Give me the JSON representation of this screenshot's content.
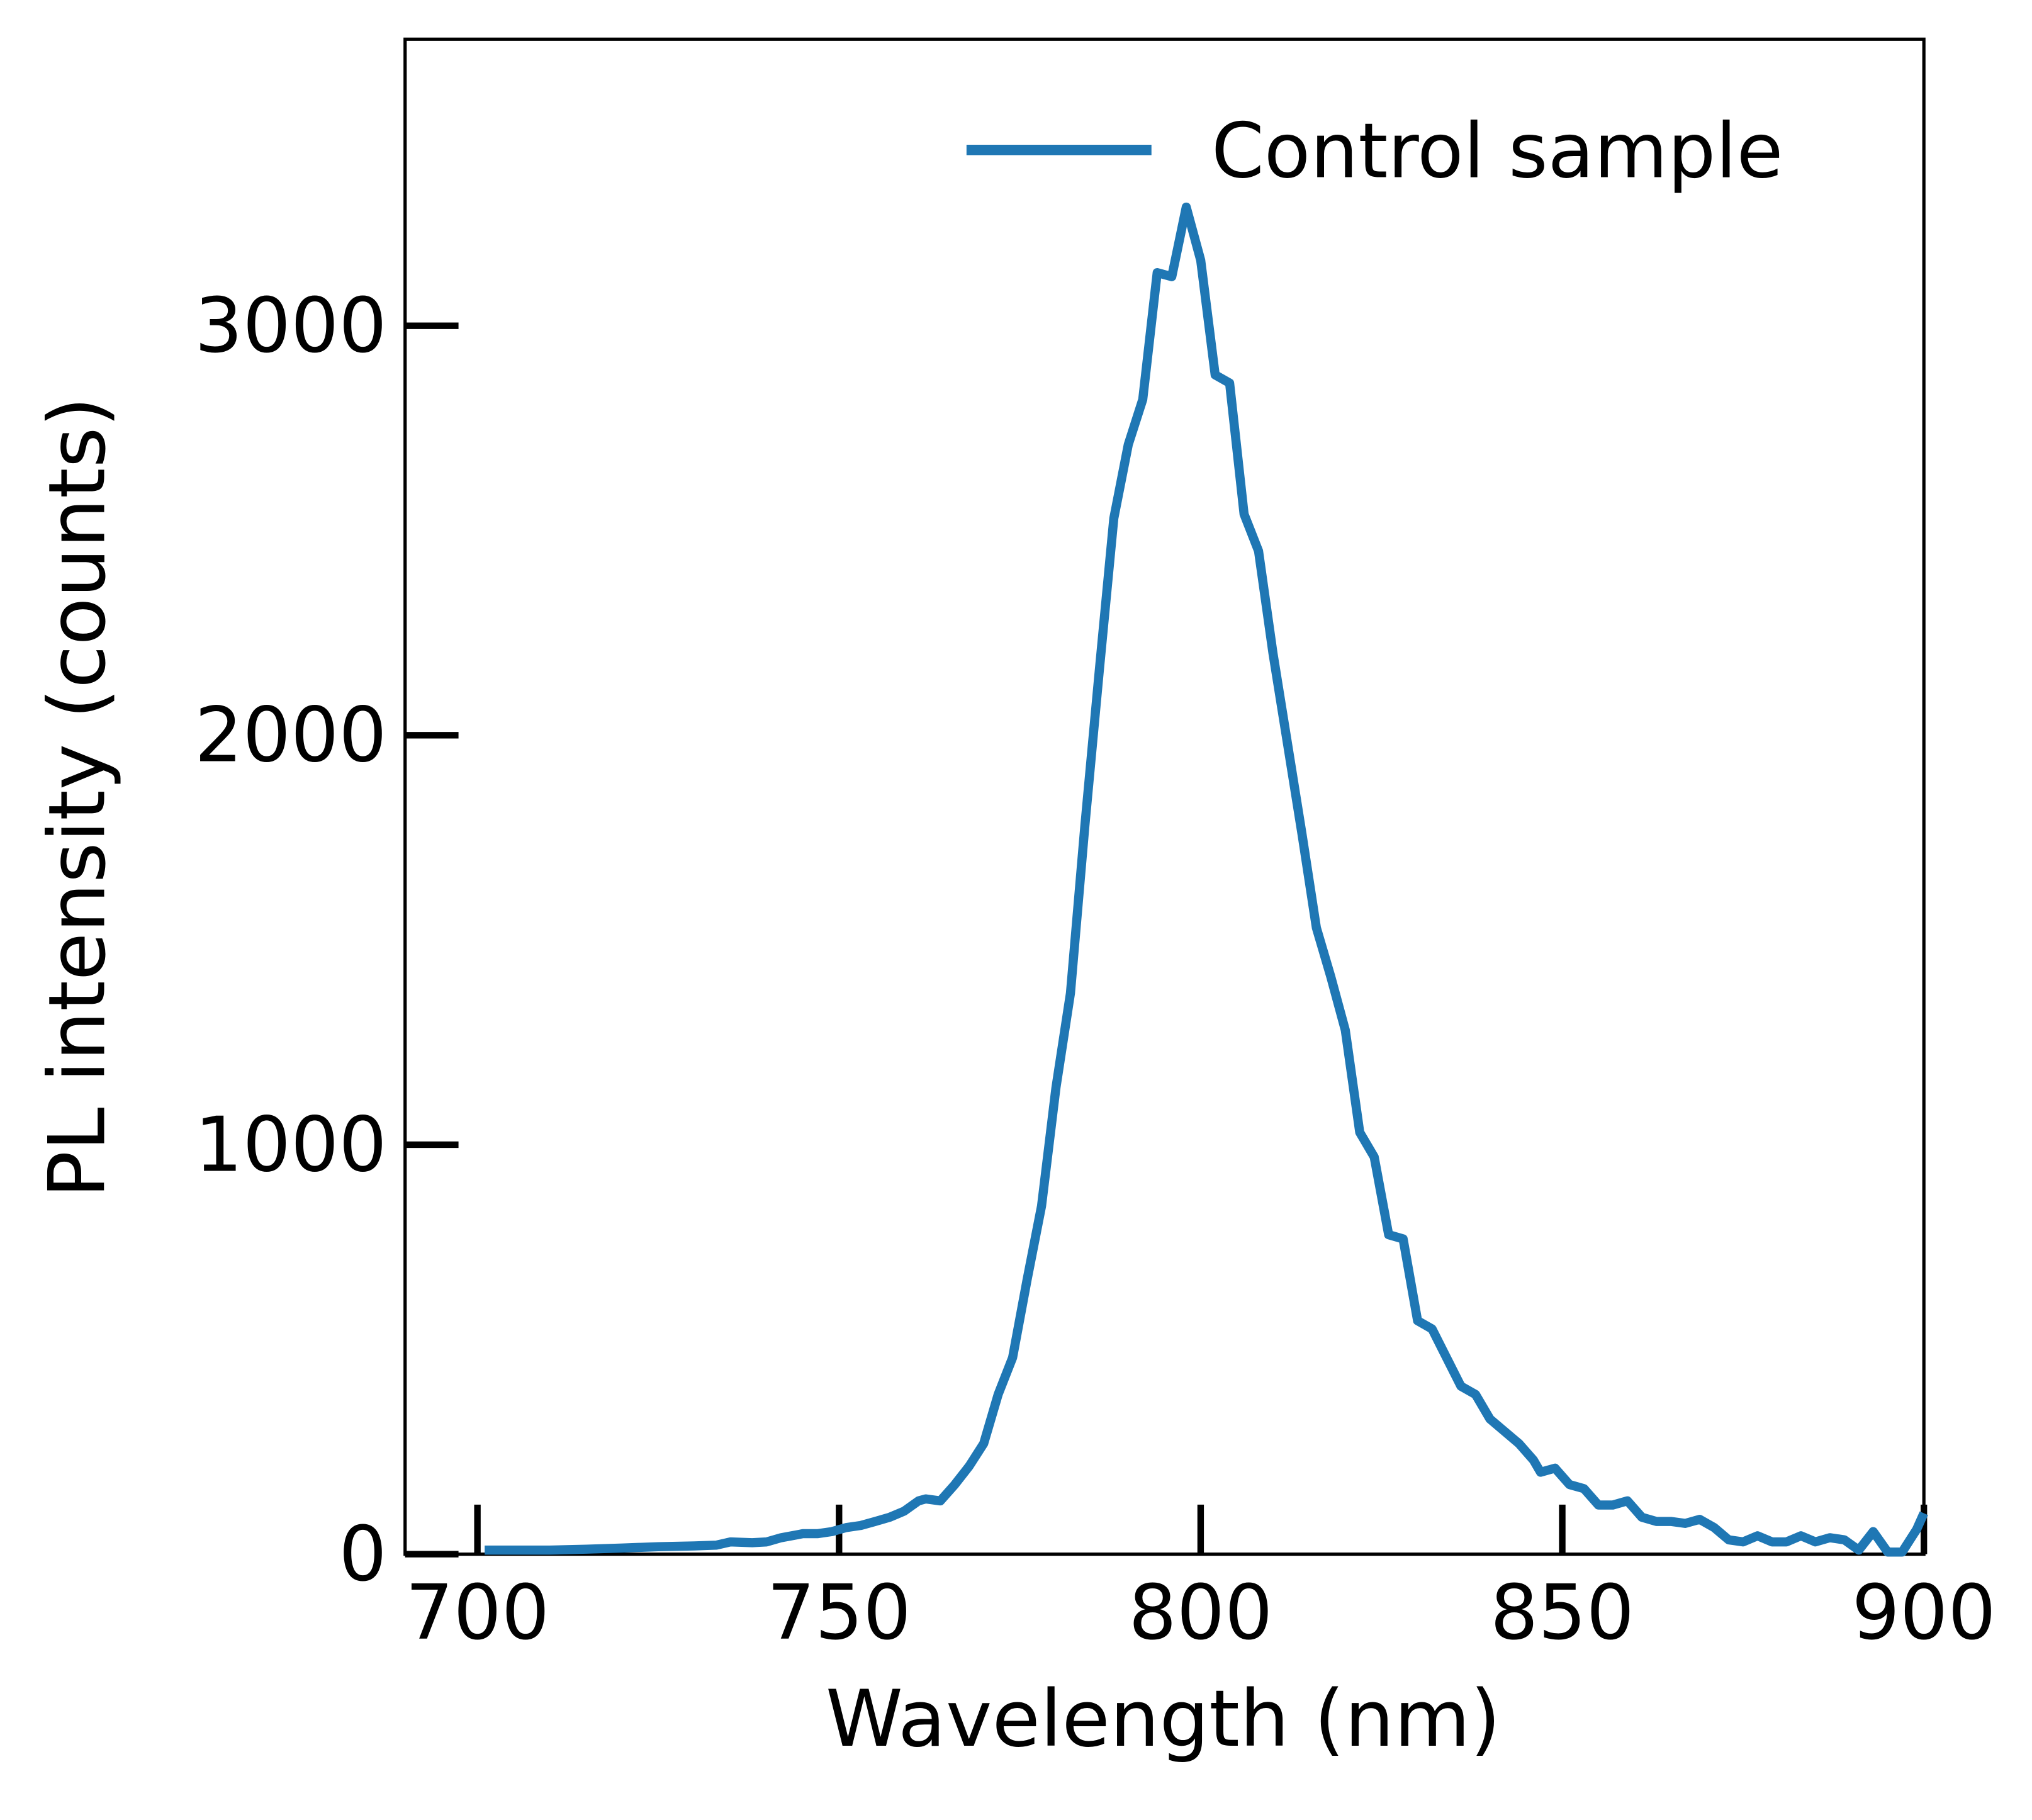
{
  "chart_data": {
    "type": "line",
    "x_label": "Wavelength (nm)",
    "y_label": "PL intensity (counts)",
    "x": [
      701,
      705,
      710,
      715,
      720,
      725,
      730,
      733,
      735,
      738,
      740,
      742,
      745,
      747,
      749,
      751,
      753,
      755,
      757,
      759,
      761,
      762,
      764,
      766,
      768,
      770,
      772,
      774,
      776,
      778,
      780,
      782,
      784,
      786,
      788,
      790,
      792,
      794,
      796,
      798,
      800,
      802,
      804,
      806,
      808,
      810,
      812,
      814,
      816,
      818,
      820,
      822,
      824,
      826,
      828,
      830,
      832,
      834,
      836,
      838,
      840,
      842,
      844,
      846,
      847,
      849,
      851,
      853,
      855,
      857,
      859,
      861,
      863,
      865,
      867,
      869,
      871,
      873,
      875,
      877,
      879,
      881,
      883,
      885,
      887,
      889,
      891,
      893,
      895,
      897,
      899,
      900
    ],
    "series": [
      {
        "name": "Control sample",
        "color": "#1f77b4",
        "values": [
          10,
          10,
          10,
          12,
          15,
          18,
          20,
          22,
          30,
          28,
          30,
          40,
          50,
          50,
          55,
          65,
          70,
          80,
          90,
          105,
          130,
          135,
          130,
          170,
          215,
          270,
          390,
          480,
          670,
          850,
          1140,
          1370,
          1780,
          2160,
          2530,
          2710,
          2820,
          3130,
          3120,
          3290,
          3160,
          2880,
          2860,
          2540,
          2450,
          2200,
          1980,
          1760,
          1530,
          1410,
          1280,
          1030,
          970,
          780,
          770,
          570,
          550,
          480,
          410,
          390,
          330,
          300,
          270,
          230,
          200,
          210,
          170,
          160,
          120,
          120,
          130,
          90,
          80,
          80,
          75,
          85,
          65,
          35,
          30,
          45,
          30,
          30,
          45,
          30,
          40,
          35,
          10,
          55,
          5,
          5,
          60,
          100
        ]
      }
    ],
    "xlim": [
      690,
      900
    ],
    "ylim": [
      0,
      3700
    ],
    "xticks": [
      700,
      750,
      800,
      850,
      900
    ],
    "yticks": [
      0,
      1000,
      2000,
      3000
    ],
    "legend": "upper right"
  }
}
